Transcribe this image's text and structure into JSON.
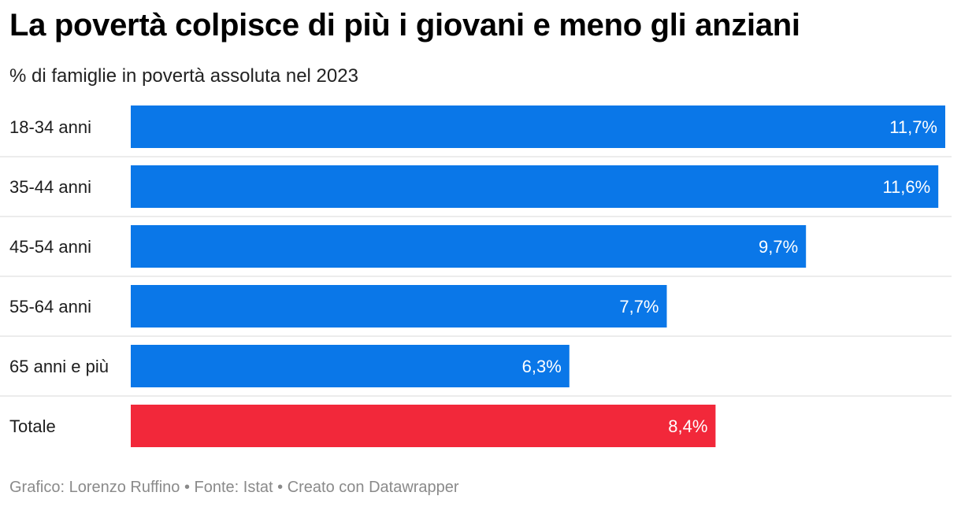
{
  "title": "La povertà colpisce di più i giovani e meno gli anziani",
  "subtitle": "% di famiglie in povertà assoluta nel 2023",
  "colors": {
    "bar": "#0a77e8",
    "highlight": "#f2283a",
    "divider": "#d9d9d9",
    "label_text": "#ffffff"
  },
  "chart_data": {
    "type": "bar",
    "orientation": "horizontal",
    "title": "La povertà colpisce di più i giovani e meno gli anziani",
    "subtitle": "% di famiglie in povertà assoluta nel 2023",
    "categories": [
      "18-34 anni",
      "35-44 anni",
      "45-54 anni",
      "55-64 anni",
      "65 anni e più",
      "Totale"
    ],
    "values": [
      11.7,
      11.6,
      9.7,
      7.7,
      6.3,
      8.4
    ],
    "value_labels": [
      "11,7%",
      "11,6%",
      "9,7%",
      "7,7%",
      "6,3%",
      "8,4%"
    ],
    "highlighted": [
      "Totale"
    ],
    "xlim": [
      0,
      11.7
    ],
    "xlabel": "",
    "ylabel": "",
    "grid": false
  },
  "footer": {
    "text": "Grafico: Lorenzo Ruffino • Fonte: Istat • Creato con Datawrapper"
  }
}
